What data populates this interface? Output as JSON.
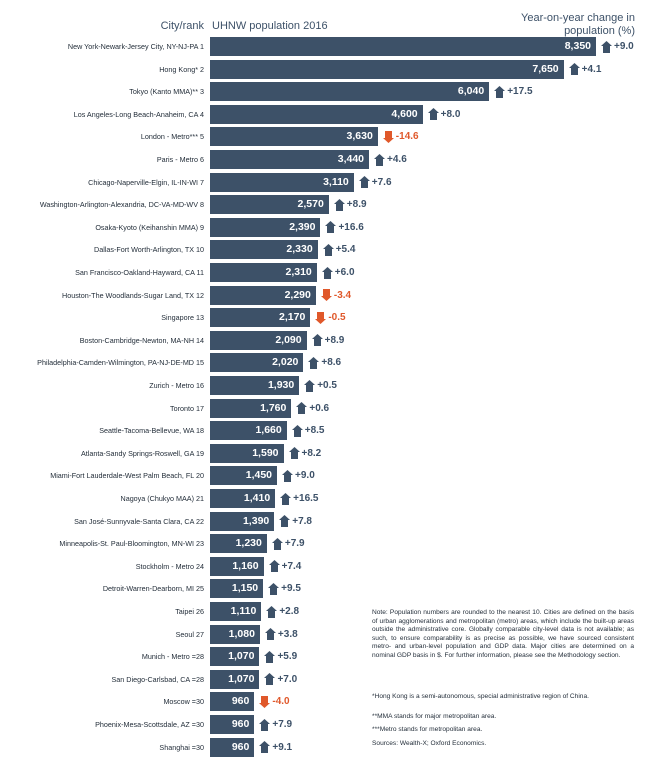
{
  "colors": {
    "bar": "#3d5168",
    "up": "#3d5168",
    "down": "#e0582a",
    "bar_text": "#ffffff"
  },
  "headers": {
    "city_rank": "City/rank",
    "population": "UHNW population 2016",
    "change_line1": "Year-on-year change in",
    "change_line2": "population (%)"
  },
  "chart_data": {
    "type": "bar",
    "orientation": "horizontal",
    "title": "",
    "xlabel": "UHNW population 2016",
    "ylabel": "City/rank",
    "secondary_label": "Year-on-year change in population (%)",
    "xlim": [
      0,
      8350
    ],
    "grid": false,
    "categories": [
      "New York-Newark-Jersey City, NY-NJ-PA 1",
      "Hong Kong* 2",
      "Tokyo (Kanto MMA)** 3",
      "Los Angeles-Long Beach-Anaheim, CA 4",
      "London - Metro*** 5",
      "Paris - Metro 6",
      "Chicago-Naperville-Elgin, IL-IN-WI 7",
      "Washington-Arlington-Alexandria, DC-VA-MD-WV 8",
      "Osaka-Kyoto (Keihanshin MMA) 9",
      "Dallas-Fort Worth-Arlington, TX 10",
      "San Francisco-Oakland-Hayward, CA 11",
      "Houston-The Woodlands-Sugar Land, TX 12",
      "Singapore 13",
      "Boston-Cambridge-Newton, MA-NH 14",
      "Philadelphia-Camden-Wilmington, PA-NJ-DE-MD 15",
      "Zurich - Metro 16",
      "Toronto 17",
      "Seattle-Tacoma-Bellevue, WA 18",
      "Atlanta-Sandy Springs-Roswell, GA 19",
      "Miami-Fort Lauderdale-West Palm Beach, FL 20",
      "Nagoya (Chukyo MAA) 21",
      "San José-Sunnyvale-Santa Clara, CA 22",
      "Minneapolis-St. Paul-Bloomington, MN-WI 23",
      "Stockholm - Metro 24",
      "Detroit-Warren-Dearborn, MI 25",
      "Taipei 26",
      "Seoul 27",
      "Munich - Metro =28",
      "San Diego-Carlsbad, CA =28",
      "Moscow =30",
      "Phoenix-Mesa-Scottsdale, AZ =30",
      "Shanghai =30"
    ],
    "series": [
      {
        "name": "UHNW population 2016",
        "values": [
          8350,
          7650,
          6040,
          4600,
          3630,
          3440,
          3110,
          2570,
          2390,
          2330,
          2310,
          2290,
          2170,
          2090,
          2020,
          1930,
          1760,
          1660,
          1590,
          1450,
          1410,
          1390,
          1230,
          1160,
          1150,
          1110,
          1080,
          1070,
          1070,
          960,
          960,
          960
        ],
        "labels": [
          "8,350",
          "7,650",
          "6,040",
          "4,600",
          "3,630",
          "3,440",
          "3,110",
          "2,570",
          "2,390",
          "2,330",
          "2,310",
          "2,290",
          "2,170",
          "2,090",
          "2,020",
          "1,930",
          "1,760",
          "1,660",
          "1,590",
          "1,450",
          "1,410",
          "1,390",
          "1,230",
          "1,160",
          "1,150",
          "1,110",
          "1,080",
          "1,070",
          "1,070",
          "960",
          "960",
          "960"
        ]
      },
      {
        "name": "Year-on-year change in population (%)",
        "values": [
          9.0,
          4.1,
          17.5,
          8.0,
          -14.6,
          4.6,
          7.6,
          8.9,
          16.6,
          5.4,
          6.0,
          -3.4,
          -0.5,
          8.9,
          8.6,
          0.5,
          0.6,
          8.5,
          8.2,
          9.0,
          16.5,
          7.8,
          7.9,
          7.4,
          9.5,
          2.8,
          3.8,
          5.9,
          7.0,
          -4.0,
          7.9,
          9.1
        ],
        "labels": [
          "+9.0",
          "+4.1",
          "+17.5",
          "+8.0",
          "-14.6",
          "+4.6",
          "+7.6",
          "+8.9",
          "+16.6",
          "+5.4",
          "+6.0",
          "-3.4",
          "-0.5",
          "+8.9",
          "+8.6",
          "+0.5",
          "+0.6",
          "+8.5",
          "+8.2",
          "+9.0",
          "+16.5",
          "+7.8",
          "+7.9",
          "+7.4",
          "+9.5",
          "+2.8",
          "+3.8",
          "+5.9",
          "+7.0",
          "-4.0",
          "+7.9",
          "+9.1"
        ]
      }
    ]
  },
  "notes": {
    "main": "Note: Population numbers are rounded to the nearest 10. Cities are defined on the basis of urban agglomerations and metropolitan (metro) areas, which include the built-up areas outside the administrative core. Globally comparable city-level data is not available; as such, to ensure comparability is as precise as possible, we have sourced consistent metro- and urban-level population and GDP data. Major cities are determined on a nominal GDP basis in $. For further information, please see the Methodology section.",
    "hong_kong": "*Hong Kong is a semi-autonomous, special administrative region of China.",
    "mma": "**MMA stands for major metropolitan area.",
    "metro": "***Metro stands for metropolitan area.",
    "sources": "Sources: Wealth-X; Oxford Economics."
  }
}
